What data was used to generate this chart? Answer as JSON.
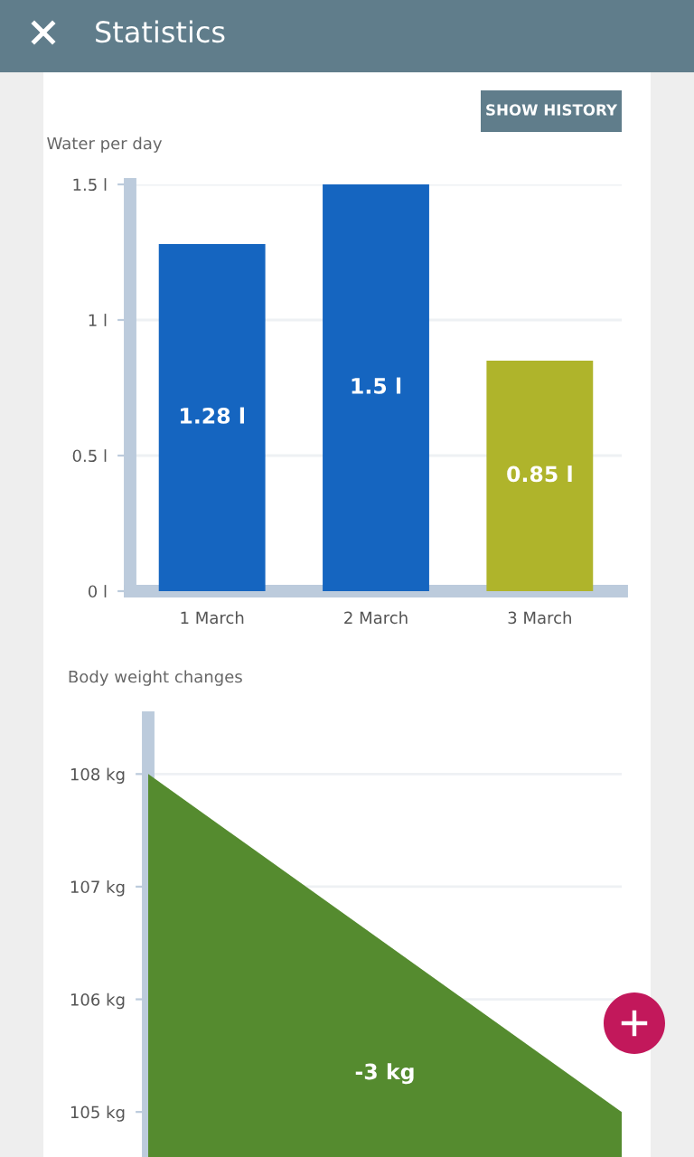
{
  "chart_data": [
    {
      "type": "bar",
      "title": "Water per day",
      "categories": [
        "1 March",
        "2 March",
        "3 March"
      ],
      "values": [
        1.28,
        1.5,
        0.85
      ],
      "colors": [
        "#1565c0",
        "#1565c0",
        "#afb42b"
      ],
      "value_labels": [
        "1.28 l",
        "1.5 l",
        "0.85 l"
      ],
      "ylim": [
        0,
        1.5
      ],
      "yticks": [
        {
          "value": 0,
          "label": "0 l"
        },
        {
          "value": 0.5,
          "label": "0.5 l"
        },
        {
          "value": 1,
          "label": "1 l"
        },
        {
          "value": 1.5,
          "label": "1.5 l"
        }
      ],
      "grid": "y",
      "annotations": [
        "Statistics",
        "SHOW HISTORY"
      ]
    },
    {
      "type": "area",
      "title": "Body weight changes",
      "categories": [
        null,
        null
      ],
      "values": [
        108,
        105
      ],
      "color": "#558b2f",
      "ylim": [
        104.6,
        108.5
      ],
      "yticks": [
        {
          "value": 105,
          "label": "105 kg"
        },
        {
          "value": 106,
          "label": "106 kg"
        },
        {
          "value": 107,
          "label": "107 kg"
        },
        {
          "value": 108,
          "label": "108 kg"
        }
      ],
      "grid": "y",
      "tick_labels": "y",
      "annotations": [
        "-3 kg"
      ]
    }
  ]
}
